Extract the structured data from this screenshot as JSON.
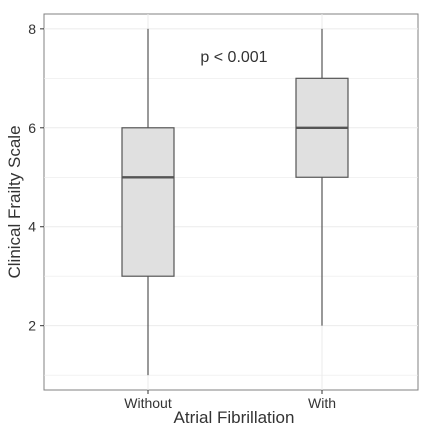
{
  "chart_data": {
    "type": "boxplot",
    "title": "",
    "xlabel": "Atrial Fibrillation",
    "ylabel": "Clinical Frailty Scale",
    "ylim": [
      0.7,
      8.3
    ],
    "yticks": [
      2,
      4,
      6,
      8
    ],
    "categories": [
      "Without",
      "With"
    ],
    "boxes": [
      {
        "category": "Without",
        "min": 1,
        "q1": 3,
        "median": 5,
        "q3": 6,
        "max": 8
      },
      {
        "category": "With",
        "min": 2,
        "q1": 5,
        "median": 6,
        "q3": 7,
        "max": 8
      }
    ],
    "annotation": "p < 0.001",
    "grid": true,
    "colors": {
      "box_fill": "#e0e0e0",
      "box_stroke": "#555555",
      "grid": "#ebebeb",
      "panel_border": "#808080"
    }
  }
}
